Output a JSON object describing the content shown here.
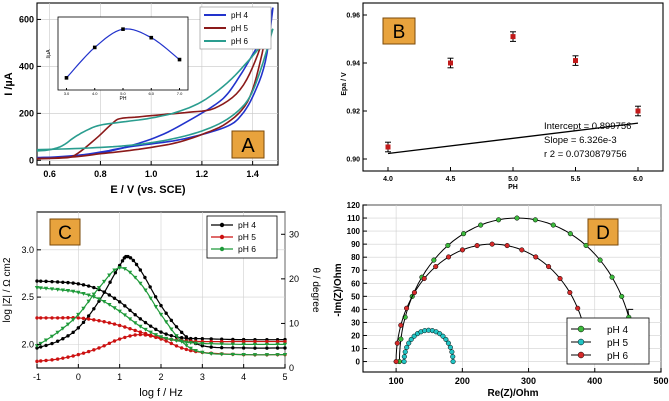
{
  "chart_data": [
    {
      "panel": "A",
      "type": "line",
      "panel_label": "A",
      "xlabel": "E / V (vs. SCE)",
      "ylabel": "I /µA",
      "xlim": [
        0.55,
        1.5
      ],
      "ylim": [
        -20,
        670
      ],
      "xticks": [
        "0.6",
        "0.8",
        "1.0",
        "1.2",
        "1.4"
      ],
      "xtick_values": [
        0.6,
        0.8,
        1.0,
        1.2,
        1.4
      ],
      "yticks": [
        "0",
        "200",
        "400",
        "600"
      ],
      "ytick_values": [
        0,
        200,
        400,
        600
      ],
      "legend": [
        "pH 4",
        "pH 5",
        "pH 6"
      ],
      "colors": [
        "#2233cc",
        "#8b1a1a",
        "#2a9d8f"
      ],
      "series": [
        {
          "name": "pH 4",
          "forward": [
            [
              0.55,
              12
            ],
            [
              0.65,
              14
            ],
            [
              0.75,
              22
            ],
            [
              0.85,
              42
            ],
            [
              0.95,
              72
            ],
            [
              1.05,
              112
            ],
            [
              1.15,
              170
            ],
            [
              1.25,
              235
            ],
            [
              1.3,
              282
            ],
            [
              1.35,
              360
            ],
            [
              1.4,
              450
            ],
            [
              1.45,
              545
            ],
            [
              1.48,
              650
            ]
          ],
          "reverse": [
            [
              1.48,
              650
            ],
            [
              1.45,
              420
            ],
            [
              1.4,
              270
            ],
            [
              1.35,
              185
            ],
            [
              1.3,
              145
            ],
            [
              1.2,
              110
            ],
            [
              1.1,
              85
            ],
            [
              1.0,
              70
            ],
            [
              0.9,
              55
            ],
            [
              0.8,
              35
            ],
            [
              0.7,
              20
            ],
            [
              0.55,
              10
            ]
          ]
        },
        {
          "name": "pH 5",
          "forward": [
            [
              0.55,
              8
            ],
            [
              0.65,
              10
            ],
            [
              0.7,
              22
            ],
            [
              0.78,
              90
            ],
            [
              0.85,
              160
            ],
            [
              0.88,
              178
            ],
            [
              0.95,
              185
            ],
            [
              1.05,
              195
            ],
            [
              1.15,
              205
            ],
            [
              1.25,
              222
            ],
            [
              1.35,
              300
            ],
            [
              1.42,
              450
            ],
            [
              1.47,
              640
            ]
          ],
          "reverse": [
            [
              1.47,
              640
            ],
            [
              1.43,
              420
            ],
            [
              1.38,
              250
            ],
            [
              1.3,
              160
            ],
            [
              1.2,
              110
            ],
            [
              1.1,
              75
            ],
            [
              1.0,
              55
            ],
            [
              0.9,
              40
            ],
            [
              0.8,
              28
            ],
            [
              0.7,
              15
            ],
            [
              0.55,
              6
            ]
          ]
        },
        {
          "name": "pH 6",
          "forward": [
            [
              0.55,
              40
            ],
            [
              0.6,
              45
            ],
            [
              0.65,
              62
            ],
            [
              0.7,
              100
            ],
            [
              0.75,
              130
            ],
            [
              0.8,
              150
            ],
            [
              0.9,
              165
            ],
            [
              1.0,
              180
            ],
            [
              1.1,
              205
            ],
            [
              1.2,
              250
            ],
            [
              1.3,
              330
            ],
            [
              1.38,
              420
            ],
            [
              1.45,
              510
            ],
            [
              1.48,
              560
            ]
          ],
          "reverse": [
            [
              1.48,
              560
            ],
            [
              1.43,
              380
            ],
            [
              1.38,
              255
            ],
            [
              1.3,
              175
            ],
            [
              1.2,
              125
            ],
            [
              1.1,
              95
            ],
            [
              1.0,
              75
            ],
            [
              0.9,
              62
            ],
            [
              0.8,
              55
            ],
            [
              0.7,
              50
            ],
            [
              0.55,
              45
            ]
          ]
        }
      ],
      "inset": {
        "type": "line",
        "x": [
          3.0,
          4.0,
          5.0,
          6.0,
          7.0
        ],
        "y": [
          2.5,
          2.75,
          2.9,
          2.83,
          2.65
        ],
        "xticks": [
          "3.0",
          "4.0",
          "5.0",
          "6.0",
          "7.0"
        ],
        "xlabel": "PH",
        "ylabel": "I/µA",
        "ylim": [
          2.4,
          3.0
        ]
      }
    },
    {
      "panel": "B",
      "type": "scatter",
      "panel_label": "B",
      "xlabel": "PH",
      "ylabel": "Epa / V",
      "xlim": [
        3.8,
        6.2
      ],
      "ylim": [
        0.895,
        0.965
      ],
      "xticks": [
        "4.0",
        "4.5",
        "5.0",
        "5.5",
        "6.0"
      ],
      "xtick_values": [
        4.0,
        4.5,
        5.0,
        5.5,
        6.0
      ],
      "yticks": [
        "0.90",
        "0.92",
        "0.94",
        "0.96"
      ],
      "ytick_values": [
        0.9,
        0.92,
        0.94,
        0.96
      ],
      "x": [
        4.0,
        4.5,
        5.0,
        5.5,
        6.0
      ],
      "y": [
        0.905,
        0.94,
        0.951,
        0.941,
        0.92
      ],
      "error": 0.002,
      "fit": {
        "intercept": 0.899756,
        "slope": 0.006326
      },
      "annotations": [
        "Intercept = 0.899756",
        "Slope = 6.326e-3",
        "r 2 = 0.0730879756"
      ]
    },
    {
      "panel": "C",
      "type": "line",
      "panel_label": "C",
      "xlabel": "log f / Hz",
      "ylabel": "log |Z| / Ω cm2",
      "ylabel_right": "θ / degree",
      "xlim": [
        -1,
        5
      ],
      "ylim": [
        1.75,
        3.4
      ],
      "ylim_right": [
        0,
        35
      ],
      "xticks": [
        "-1",
        "0",
        "1",
        "2",
        "3",
        "4",
        "5"
      ],
      "xtick_values": [
        -1,
        0,
        1,
        2,
        3,
        4,
        5
      ],
      "yticks": [
        "2.0",
        "2.5",
        "3.0"
      ],
      "ytick_values": [
        2.0,
        2.5,
        3.0
      ],
      "yticks_right": [
        "0",
        "10",
        "20",
        "30"
      ],
      "ytick_values_right": [
        0,
        10,
        20,
        30
      ],
      "legend": [
        "pH 4",
        "pH 5",
        "pH 6"
      ],
      "colors": [
        "#000000",
        "#cc1111",
        "#1f9a3a"
      ],
      "series": [
        {
          "name": "pH 4",
          "logZ": [
            [
              -1,
              2.67
            ],
            [
              -0.5,
              2.66
            ],
            [
              0,
              2.64
            ],
            [
              0.5,
              2.58
            ],
            [
              1,
              2.45
            ],
            [
              1.5,
              2.27
            ],
            [
              2,
              2.13
            ],
            [
              2.5,
              2.07
            ],
            [
              3,
              2.06
            ],
            [
              4,
              2.05
            ],
            [
              5,
              2.05
            ]
          ],
          "theta": [
            [
              -1,
              4.5
            ],
            [
              -0.5,
              6
            ],
            [
              0,
              9
            ],
            [
              0.5,
              15
            ],
            [
              1,
              23
            ],
            [
              1.2,
              25
            ],
            [
              1.5,
              22
            ],
            [
              2,
              14
            ],
            [
              2.5,
              8
            ],
            [
              3,
              5
            ],
            [
              4,
              4.5
            ],
            [
              5,
              4.5
            ]
          ]
        },
        {
          "name": "pH 5",
          "logZ": [
            [
              -1,
              2.28
            ],
            [
              -0.5,
              2.28
            ],
            [
              0,
              2.28
            ],
            [
              0.5,
              2.25
            ],
            [
              1,
              2.2
            ],
            [
              1.5,
              2.13
            ],
            [
              2,
              2.07
            ],
            [
              2.5,
              2.04
            ],
            [
              3,
              2.03
            ],
            [
              4,
              2.03
            ],
            [
              5,
              2.03
            ]
          ],
          "theta": [
            [
              -1,
              1.5
            ],
            [
              -0.5,
              2
            ],
            [
              0,
              3
            ],
            [
              0.5,
              4.5
            ],
            [
              1,
              6.5
            ],
            [
              1.5,
              7.5
            ],
            [
              2,
              6.5
            ],
            [
              2.5,
              4.5
            ],
            [
              3,
              3.5
            ],
            [
              4,
              3
            ],
            [
              5,
              3
            ]
          ]
        },
        {
          "name": "pH 6",
          "logZ": [
            [
              -1,
              2.6
            ],
            [
              -0.5,
              2.58
            ],
            [
              0,
              2.55
            ],
            [
              0.5,
              2.48
            ],
            [
              1,
              2.35
            ],
            [
              1.5,
              2.19
            ],
            [
              2,
              2.08
            ],
            [
              2.5,
              2.03
            ],
            [
              3,
              2.01
            ],
            [
              4,
              2.0
            ],
            [
              5,
              2.0
            ]
          ],
          "theta": [
            [
              -1,
              5
            ],
            [
              -0.5,
              8
            ],
            [
              0,
              12
            ],
            [
              0.5,
              18
            ],
            [
              1,
              22.5
            ],
            [
              1.5,
              19
            ],
            [
              2,
              12
            ],
            [
              2.5,
              6
            ],
            [
              3,
              3.5
            ],
            [
              4,
              3
            ],
            [
              5,
              3
            ]
          ]
        }
      ]
    },
    {
      "panel": "D",
      "type": "line",
      "panel_label": "D",
      "xlabel": "Re(Z)/Ohm",
      "ylabel": "-Im(Z)/Ohm",
      "xlim": [
        50,
        500
      ],
      "ylim": [
        -8,
        120
      ],
      "xticks": [
        "100",
        "200",
        "300",
        "400",
        "500"
      ],
      "xtick_values": [
        100,
        200,
        300,
        400,
        500
      ],
      "yticks": [
        "0",
        "10",
        "20",
        "30",
        "40",
        "50",
        "60",
        "70",
        "80",
        "90",
        "100",
        "110",
        "120"
      ],
      "ytick_values": [
        0,
        10,
        20,
        30,
        40,
        50,
        60,
        70,
        80,
        90,
        100,
        110,
        120
      ],
      "legend": [
        "pH 4",
        "pH 5",
        "pH 6"
      ],
      "colors": [
        "#3dbb3d",
        "#22c4c4",
        "#d62a2a"
      ],
      "series": [
        {
          "name": "pH 4",
          "R0": 105,
          "R1": 460,
          "peak": 110,
          "tail": [
            [
              450,
              40
            ],
            [
              458,
              40
            ]
          ]
        },
        {
          "name": "pH 5",
          "R0": 112,
          "R1": 186,
          "peak": 24
        },
        {
          "name": "pH 6",
          "R0": 100,
          "R1": 390,
          "peak": 90
        }
      ]
    }
  ]
}
